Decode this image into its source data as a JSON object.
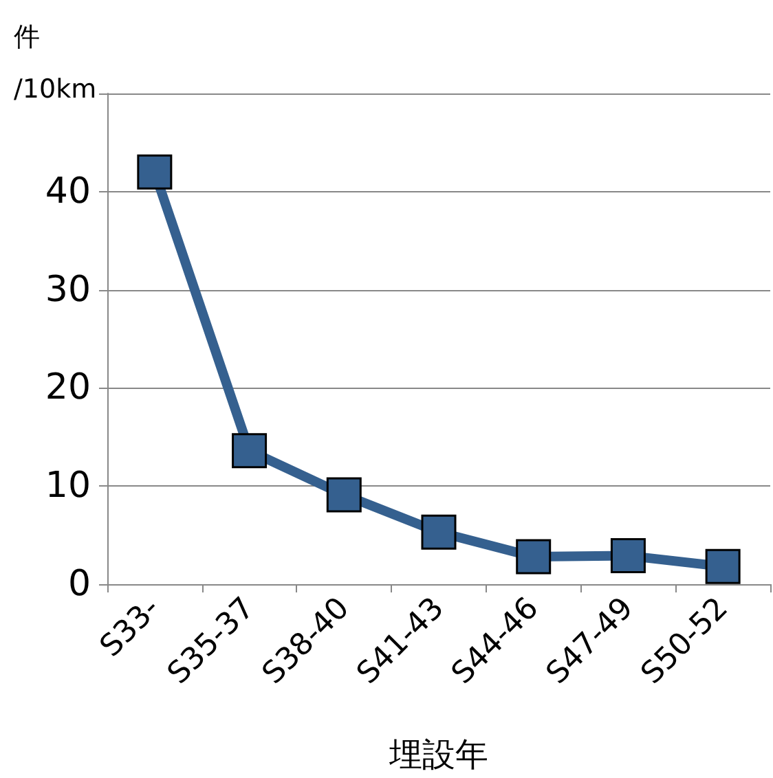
{
  "chart_data": {
    "type": "line",
    "xlabel": "埋設年",
    "ylabel": "件\n/10km",
    "categories": [
      "S33-",
      "S35-37",
      "S38-40",
      "S41-43",
      "S44-46",
      "S47-49",
      "S50-52"
    ],
    "series": [
      {
        "color": "#35608f",
        "values": [
          42,
          13.6,
          9.1,
          5.3,
          2.8,
          2.9,
          1.8
        ]
      }
    ],
    "ylim": [
      0,
      50
    ],
    "yticks": [
      0,
      10,
      20,
      30,
      40,
      {
        "value": 50,
        "label": null
      }
    ],
    "grid": "y",
    "marker": "square",
    "line_style": "solid"
  }
}
